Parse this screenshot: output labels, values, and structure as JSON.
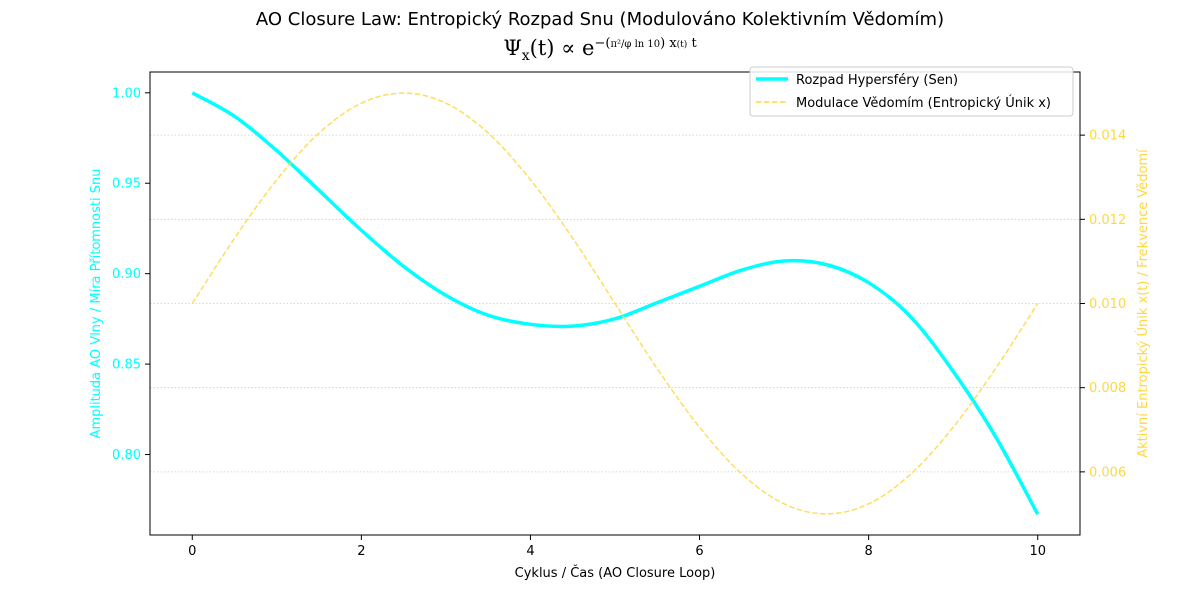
{
  "title": "AO Closure Law: Entropický Rozpad Snu (Modulováno Kolektivním Vědomím)",
  "subtitle_formula": "Ψx(t) ∝ e^−(π²/(φ ln 10)) x(t) t",
  "colors": {
    "primary": "#00FFFF",
    "secondary": "#FFD740",
    "grid": "#cccccc",
    "axis": "#000000"
  },
  "chart_data": {
    "type": "line",
    "title": "AO Closure Law: Entropický Rozpad Snu (Modulováno Kolektivním Vědomím)",
    "subtitle": "Ψx(t) ∝ e^−(π²/(φ ln 10)) x(t) t",
    "xlabel": "Cyklus / Čas (AO Closure Loop)",
    "ylabel": "Amplituda AO Vlny / Míra Přítomnosti Snu",
    "y2label": "Aktivní Entropický Únik x(t) / Frekvence Vědomí",
    "xlim": [
      -0.5,
      10.5
    ],
    "ylim": [
      0.7555,
      1.0115
    ],
    "y2lim": [
      0.0045,
      0.0155
    ],
    "xticks": [
      "0",
      "2",
      "4",
      "6",
      "8",
      "10"
    ],
    "yticks": [
      "0.80",
      "0.85",
      "0.90",
      "0.95",
      "1.00"
    ],
    "y2ticks": [
      "0.006",
      "0.008",
      "0.010",
      "0.012",
      "0.014"
    ],
    "grid": "horizontal dotted",
    "legend": "top-right",
    "series": [
      {
        "name": "Rozpad Hypersféry (Sen)",
        "axis": "left",
        "style": "solid",
        "color": "#00FFFF",
        "x": [
          0,
          0.5,
          1,
          1.5,
          2,
          2.5,
          3,
          3.5,
          4,
          4.5,
          5,
          5.5,
          6,
          6.5,
          7,
          7.5,
          8,
          8.5,
          9,
          9.5,
          10
        ],
        "y": [
          1.0,
          0.987,
          0.968,
          0.946,
          0.924,
          0.904,
          0.888,
          0.877,
          0.872,
          0.871,
          0.875,
          0.884,
          0.893,
          0.902,
          0.907,
          0.905,
          0.895,
          0.876,
          0.846,
          0.81,
          0.767
        ]
      },
      {
        "name": "Modulace Vědomím (Entropický Únik x)",
        "axis": "right",
        "style": "dashed",
        "color": "#FFD740",
        "x": [
          0,
          0.5,
          1,
          1.5,
          2,
          2.5,
          3,
          3.5,
          4,
          4.5,
          5,
          5.5,
          6,
          6.5,
          7,
          7.5,
          8,
          8.5,
          9,
          9.5,
          10
        ],
        "y": [
          0.01,
          0.01155,
          0.01294,
          0.01405,
          0.01476,
          0.015,
          0.01476,
          0.01405,
          0.01294,
          0.01155,
          0.01,
          0.00845,
          0.00706,
          0.00595,
          0.00524,
          0.005,
          0.00524,
          0.00595,
          0.00706,
          0.00845,
          0.01
        ]
      }
    ]
  }
}
